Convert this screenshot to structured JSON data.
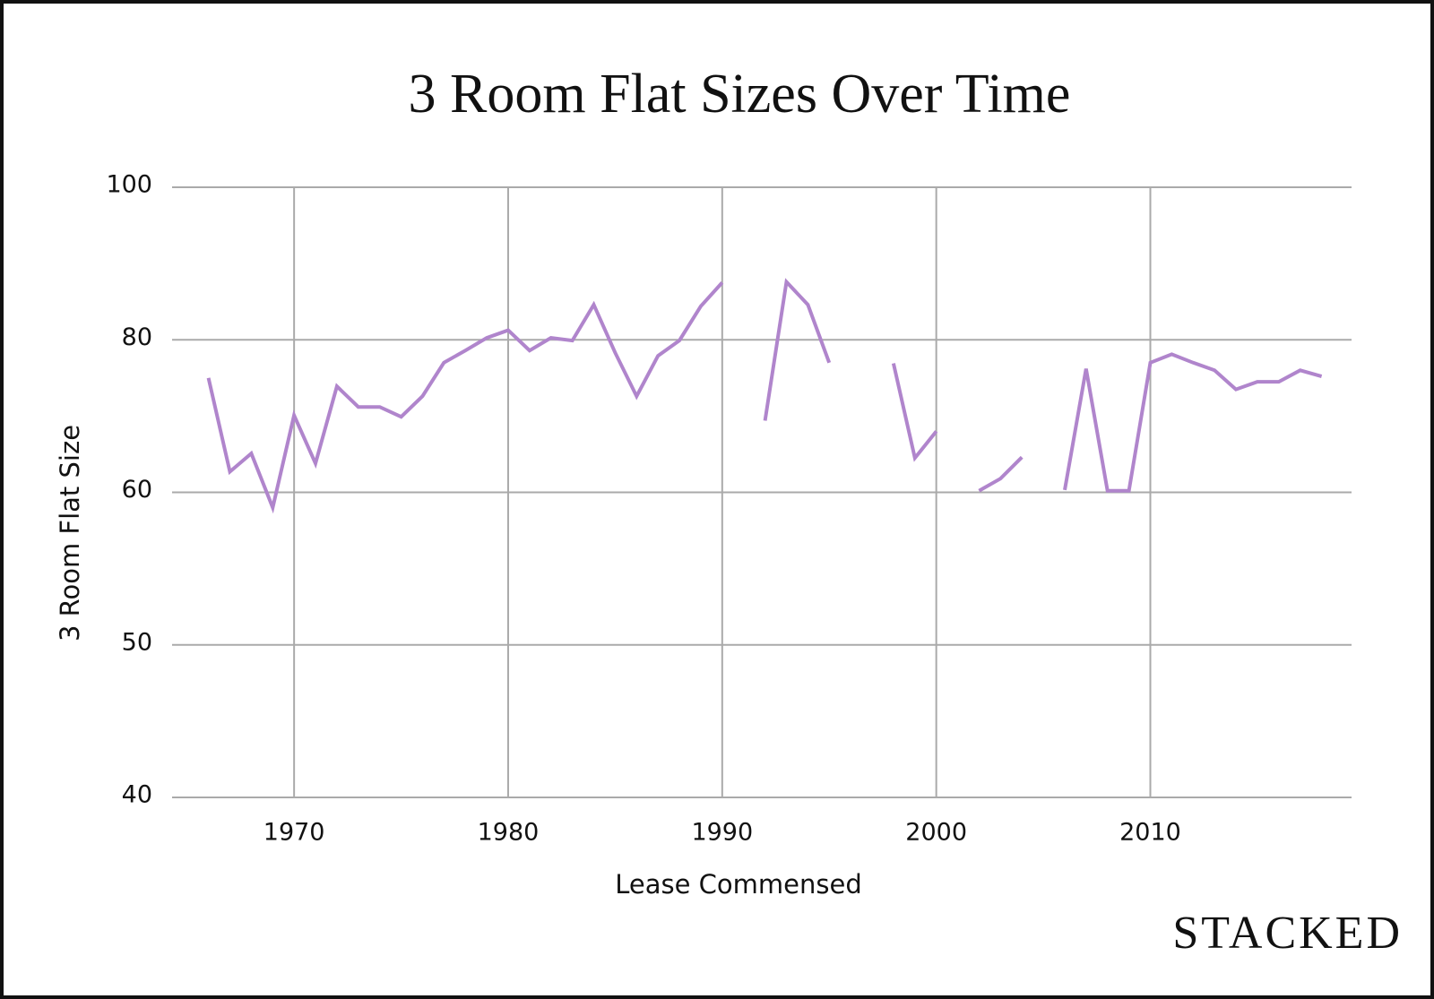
{
  "chart_data": {
    "type": "line",
    "title": "3 Room Flat Sizes Over Time",
    "x_label": "Lease Commensed",
    "y_label": "3 Room Flat Size",
    "watermark": "STACKED",
    "x": [
      1966,
      1967,
      1968,
      1969,
      1970,
      1971,
      1972,
      1973,
      1974,
      1975,
      1976,
      1977,
      1978,
      1979,
      1980,
      1981,
      1982,
      1983,
      1984,
      1985,
      1986,
      1987,
      1988,
      1989,
      1990,
      1991,
      1992,
      1993,
      1994,
      1995,
      1996,
      1997,
      1998,
      1999,
      2000,
      2001,
      2002,
      2003,
      2004,
      2005,
      2006,
      2007,
      2008,
      2009,
      2010,
      2011,
      2012,
      2013,
      2014,
      2015,
      2016,
      2017,
      2018
    ],
    "series": [
      {
        "name": "3 Room Flat Size",
        "color": "#b085cc",
        "values": [
          75,
          62.7,
          65.1,
          59,
          70.1,
          63.8,
          73.9,
          71.2,
          71.2,
          69.9,
          72.6,
          77,
          78.6,
          80.25,
          81.25,
          78.6,
          80.25,
          79.9,
          84.6,
          78.3,
          72.6,
          77.9,
          79.9,
          84.4,
          87.5,
          null,
          69.4,
          87.6,
          84.6,
          77,
          null,
          null,
          76.9,
          64.5,
          68,
          null,
          60.2,
          61.8,
          64.6,
          null,
          60.3,
          76.2,
          60.2,
          60.2,
          77,
          78.1,
          77,
          76,
          73.5,
          74.5,
          74.5,
          76,
          75.2
        ]
      }
    ],
    "xlim": [
      1964.3,
      2019.4
    ],
    "xticks": [
      1970,
      1980,
      1990,
      2000,
      2010
    ],
    "ylim": [
      40,
      100
    ],
    "yticks": [
      40,
      50,
      60,
      80,
      100
    ],
    "grid": true
  }
}
